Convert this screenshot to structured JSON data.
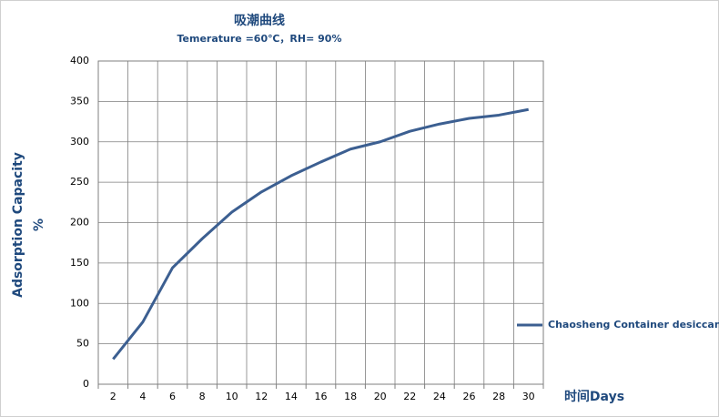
{
  "chart_data": {
    "type": "line",
    "title": "吸潮曲线",
    "subtitle": "Temerature =60℃，RH= 90%",
    "x_label": "时间Days",
    "y_label": [
      "Adsorption Capacity",
      "%"
    ],
    "categories": [
      2,
      4,
      6,
      8,
      10,
      12,
      14,
      16,
      18,
      20,
      22,
      24,
      26,
      28,
      30
    ],
    "series": [
      {
        "name": "Chaosheng Container desiccant",
        "color": "#3c5f91",
        "values": [
          31,
          77,
          144,
          180,
          213,
          238,
          258,
          275,
          291,
          300,
          313,
          322,
          329,
          333,
          340
        ]
      }
    ],
    "ylim": [
      0,
      400
    ],
    "yticks": [
      0,
      50,
      100,
      150,
      200,
      250,
      300,
      350,
      400
    ],
    "grid": true,
    "legend": "right"
  }
}
